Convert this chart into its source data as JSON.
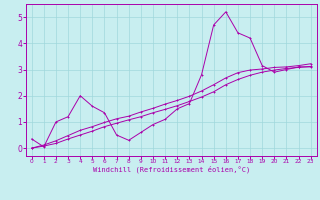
{
  "bg_color": "#c8eef0",
  "grid_color": "#a0d8dc",
  "line_color": "#aa00aa",
  "xlabel": "Windchill (Refroidissement éolien,°C)",
  "xlim": [
    -0.5,
    23.5
  ],
  "ylim": [
    -0.3,
    5.5
  ],
  "xticks": [
    0,
    1,
    2,
    3,
    4,
    5,
    6,
    7,
    8,
    9,
    10,
    11,
    12,
    13,
    14,
    15,
    16,
    17,
    18,
    19,
    20,
    21,
    22,
    23
  ],
  "yticks": [
    0,
    1,
    2,
    3,
    4,
    5
  ],
  "series1_x": [
    0,
    1,
    2,
    3,
    4,
    5,
    6,
    7,
    8,
    9,
    10,
    11,
    12,
    13,
    14,
    15,
    16,
    17,
    18,
    19,
    20,
    21,
    22,
    23
  ],
  "series1_y": [
    0.35,
    0.05,
    1.0,
    1.2,
    2.0,
    1.6,
    1.35,
    0.5,
    0.3,
    0.6,
    0.9,
    1.1,
    1.5,
    1.7,
    2.8,
    4.7,
    5.2,
    4.4,
    4.2,
    3.15,
    2.9,
    3.0,
    3.1,
    3.1
  ],
  "series2_x": [
    0,
    1,
    2,
    3,
    4,
    5,
    6,
    7,
    8,
    9,
    10,
    11,
    12,
    13,
    14,
    15,
    16,
    17,
    18,
    19,
    20,
    21,
    22,
    23
  ],
  "series2_y": [
    0.0,
    0.08,
    0.18,
    0.35,
    0.5,
    0.65,
    0.82,
    0.95,
    1.08,
    1.2,
    1.35,
    1.48,
    1.62,
    1.78,
    1.95,
    2.15,
    2.42,
    2.62,
    2.78,
    2.9,
    2.98,
    3.04,
    3.08,
    3.12
  ],
  "series3_x": [
    0,
    1,
    2,
    3,
    4,
    5,
    6,
    7,
    8,
    9,
    10,
    11,
    12,
    13,
    14,
    15,
    16,
    17,
    18,
    19,
    20,
    21,
    22,
    23
  ],
  "series3_y": [
    0.0,
    0.12,
    0.28,
    0.48,
    0.68,
    0.82,
    0.98,
    1.12,
    1.22,
    1.38,
    1.52,
    1.68,
    1.82,
    1.98,
    2.18,
    2.42,
    2.68,
    2.88,
    2.98,
    3.02,
    3.08,
    3.1,
    3.15,
    3.22
  ]
}
